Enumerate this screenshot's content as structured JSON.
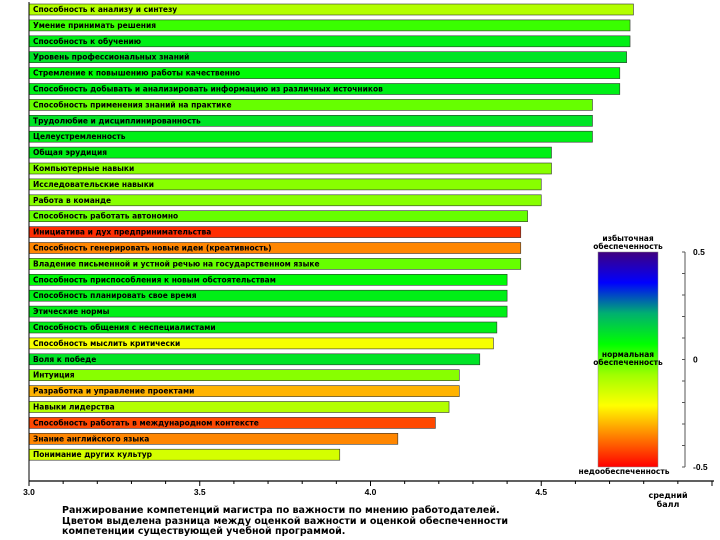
{
  "chart_data": {
    "type": "bar",
    "orientation": "horizontal",
    "title": "",
    "xlabel": "средний балл",
    "ylabel": "",
    "xlim": [
      3.0,
      5.0
    ],
    "x_ticks": [
      "3.0",
      "3.5",
      "4.0",
      "4.5"
    ],
    "x_tick_values": [
      3.0,
      3.5,
      4.0,
      4.5
    ],
    "grid": false,
    "categories": [
      "Способность к анализу и синтезу",
      "Умение принимать решения",
      "Способность к обучению",
      "Уровень профессиональных знаний",
      "Стремление к повышению работы качественно",
      "Способность добывать и анализировать информацию из различных источников",
      "Способность применения знаний на практике",
      "Трудолюбие и дисциплинированность",
      "Целеустремленность",
      "Общая эрудиция",
      "Компьютерные навыки",
      "Исследовательские навыки",
      "Работа в команде",
      "Способность работать автономно",
      "Инициатива и дух предпринимательства",
      "Способность генерировать новые идеи (креативность)",
      "Владение письменной и устной речью на государственном языке",
      "Способность приспособления к новым обстоятельствам",
      "Способность планировать свое время",
      "Этические нормы",
      "Способность общения с неспециалистами",
      "Способность мыслить критически",
      "Воля к победе",
      "Интуиция",
      "Разработка и управление проектами",
      "Навыки лидерства",
      "Способность работать в международном контексте",
      "Знание английского языка",
      "Понимание других культур"
    ],
    "values": [
      4.77,
      4.76,
      4.76,
      4.75,
      4.73,
      4.73,
      4.65,
      4.65,
      4.65,
      4.53,
      4.53,
      4.5,
      4.5,
      4.46,
      4.44,
      4.44,
      4.44,
      4.4,
      4.4,
      4.4,
      4.37,
      4.36,
      4.32,
      4.26,
      4.26,
      4.23,
      4.19,
      4.08,
      3.91
    ],
    "difference": [
      -0.1,
      0.02,
      0.1,
      0.12,
      0.08,
      0.1,
      -0.02,
      0.12,
      0.1,
      0.1,
      -0.05,
      -0.05,
      -0.05,
      -0.02,
      -0.45,
      -0.35,
      -0.02,
      0.08,
      0.1,
      0.1,
      0.1,
      -0.2,
      0.12,
      -0.05,
      -0.3,
      -0.1,
      -0.42,
      -0.35,
      -0.15
    ],
    "colorscale": {
      "title": "",
      "range": [
        -0.5,
        0.5
      ],
      "ticks": [
        "0.5",
        "0",
        "-0.5"
      ],
      "tick_values": [
        0.5,
        0,
        -0.5
      ],
      "labels": {
        "top": "избыточная обеспеченность",
        "middle": "нормальная обеспеченность",
        "bottom": "недообеспеченность"
      },
      "colors": [
        "#ff0000",
        "#ff8000",
        "#ffff00",
        "#a0ff00",
        "#00ff00",
        "#00b070",
        "#0000ff",
        "#40007f"
      ]
    }
  },
  "caption": [
    "Ранжирование компетенций магистра по важности по мнению работодателей.",
    "Цветом выделена разница между оценкой важности и оценкой обеспеченности",
    "компетенции существующей учебной программой."
  ]
}
